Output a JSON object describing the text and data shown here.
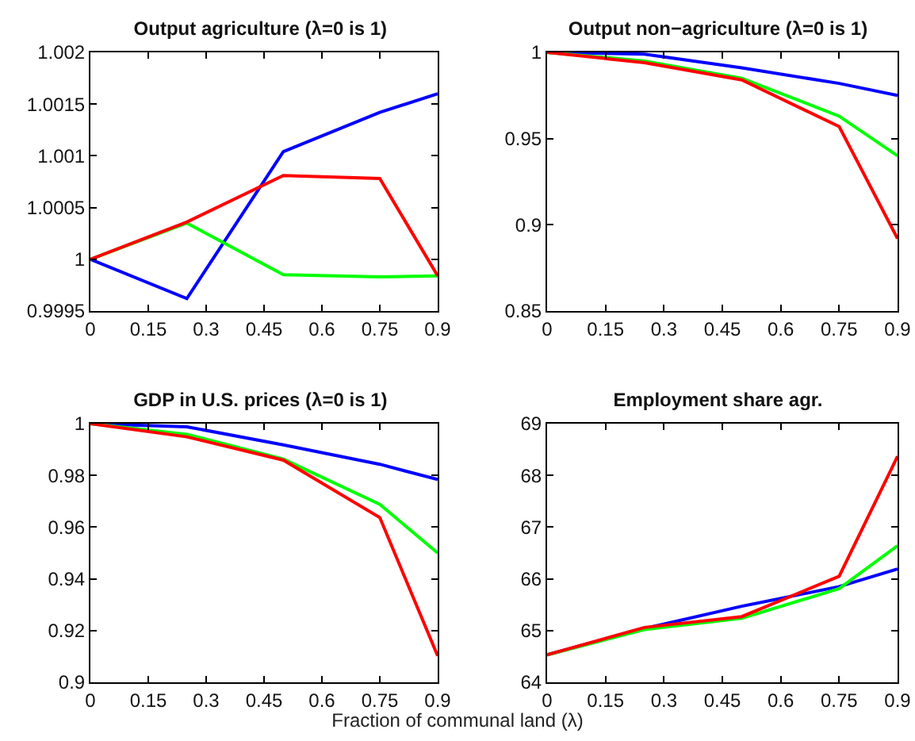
{
  "chart_data": [
    {
      "type": "line",
      "title": "Output agriculture (λ=0 is 1)",
      "x": [
        0,
        0.25,
        0.5,
        0.75,
        0.9
      ],
      "xlim": [
        0,
        0.9
      ],
      "xticks": [
        0,
        0.15,
        0.3,
        0.45,
        0.6,
        0.75,
        0.9
      ],
      "ylim": [
        0.9995,
        1.002
      ],
      "yticks": [
        0.9995,
        1,
        1.0005,
        1.001,
        1.0015,
        1.002
      ],
      "series": [
        {
          "color": "#0000ff",
          "values": [
            1,
            0.99962,
            1.00104,
            1.00142,
            1.0016
          ]
        },
        {
          "color": "#00ff00",
          "values": [
            1,
            1.00035,
            0.99985,
            0.99983,
            0.99984
          ]
        },
        {
          "color": "#ff0000",
          "values": [
            1,
            1.00036,
            1.00081,
            1.00078,
            0.99984
          ]
        }
      ]
    },
    {
      "type": "line",
      "title": "Output non−agriculture (λ=0 is 1)",
      "x": [
        0,
        0.25,
        0.5,
        0.75,
        0.9
      ],
      "xlim": [
        0,
        0.9
      ],
      "xticks": [
        0,
        0.15,
        0.3,
        0.45,
        0.6,
        0.75,
        0.9
      ],
      "ylim": [
        0.85,
        1
      ],
      "yticks": [
        0.85,
        0.9,
        0.95,
        1
      ],
      "series": [
        {
          "color": "#0000ff",
          "values": [
            1,
            0.999,
            0.991,
            0.982,
            0.975
          ]
        },
        {
          "color": "#00ff00",
          "values": [
            1,
            0.995,
            0.985,
            0.963,
            0.94
          ]
        },
        {
          "color": "#ff0000",
          "values": [
            1,
            0.994,
            0.984,
            0.957,
            0.892
          ]
        }
      ]
    },
    {
      "type": "line",
      "title": "GDP in U.S. prices (λ=0 is 1)",
      "xlabel": "Fraction of communal land (λ)",
      "x": [
        0,
        0.25,
        0.5,
        0.75,
        0.9
      ],
      "xlim": [
        0,
        0.9
      ],
      "xticks": [
        0,
        0.15,
        0.3,
        0.45,
        0.6,
        0.75,
        0.9
      ],
      "ylim": [
        0.9,
        1
      ],
      "yticks": [
        0.9,
        0.92,
        0.94,
        0.96,
        0.98,
        1
      ],
      "series": [
        {
          "color": "#0000ff",
          "values": [
            1,
            0.9988,
            0.9918,
            0.9843,
            0.9784
          ]
        },
        {
          "color": "#00ff00",
          "values": [
            1,
            0.9959,
            0.9863,
            0.9688,
            0.95
          ]
        },
        {
          "color": "#ff0000",
          "values": [
            1,
            0.9949,
            0.9859,
            0.9637,
            0.9102
          ]
        }
      ]
    },
    {
      "type": "line",
      "title": "Employment share agr.",
      "x": [
        0,
        0.25,
        0.5,
        0.75,
        0.9
      ],
      "xlim": [
        0,
        0.9
      ],
      "xticks": [
        0,
        0.15,
        0.3,
        0.45,
        0.6,
        0.75,
        0.9
      ],
      "ylim": [
        64,
        69
      ],
      "yticks": [
        64,
        65,
        66,
        67,
        68,
        69
      ],
      "series": [
        {
          "color": "#0000ff",
          "values": [
            64.53,
            65.04,
            65.47,
            65.85,
            66.19
          ]
        },
        {
          "color": "#00ff00",
          "values": [
            64.53,
            65.02,
            65.24,
            65.81,
            66.64
          ]
        },
        {
          "color": "#ff0000",
          "values": [
            64.53,
            65.06,
            65.27,
            66.05,
            68.37
          ]
        }
      ]
    }
  ]
}
